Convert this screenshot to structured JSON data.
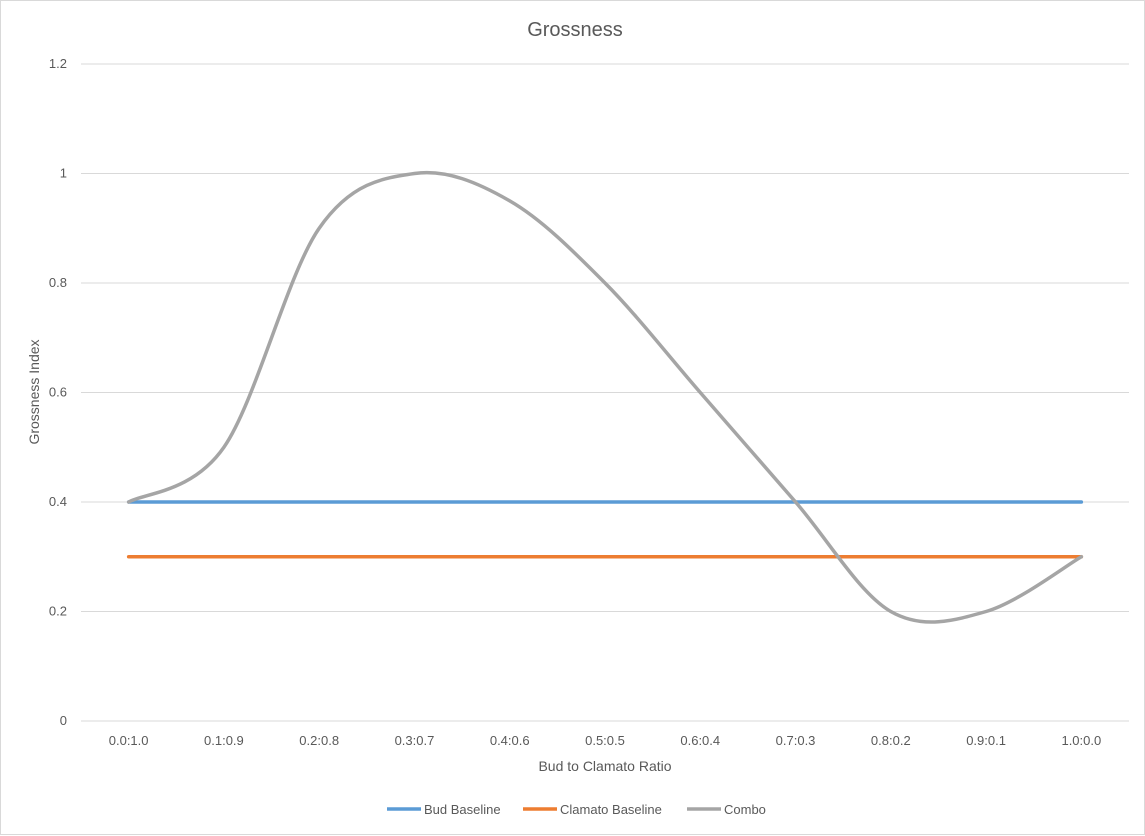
{
  "chart_data": {
    "type": "line",
    "title": "Grossness",
    "xlabel": "Bud to Clamato Ratio",
    "ylabel": "Grossness Index",
    "categories": [
      "0.0:1.0",
      "0.1:0.9",
      "0.2:0.8",
      "0.3:0.7",
      "0.4:0.6",
      "0.5:0.5",
      "0.6:0.4",
      "0.7:0.3",
      "0.8:0.2",
      "0.9:0.1",
      "1.0:0.0"
    ],
    "ylim": [
      0,
      1.2
    ],
    "yticks": [
      "0",
      "0.2",
      "0.4",
      "0.6",
      "0.8",
      "1",
      "1.2"
    ],
    "grid": true,
    "legend_position": "bottom",
    "smooth": true,
    "series": [
      {
        "name": "Bud Baseline",
        "color": "#5b9bd5",
        "values": [
          0.4,
          0.4,
          0.4,
          0.4,
          0.4,
          0.4,
          0.4,
          0.4,
          0.4,
          0.4,
          0.4
        ]
      },
      {
        "name": "Clamato Baseline",
        "color": "#ed7d31",
        "values": [
          0.3,
          0.3,
          0.3,
          0.3,
          0.3,
          0.3,
          0.3,
          0.3,
          0.3,
          0.3,
          0.3
        ]
      },
      {
        "name": "Combo",
        "color": "#a5a5a5",
        "values": [
          0.4,
          0.5,
          0.9,
          1.0,
          0.95,
          0.8,
          0.6,
          0.4,
          0.2,
          0.2,
          0.3
        ]
      }
    ]
  }
}
